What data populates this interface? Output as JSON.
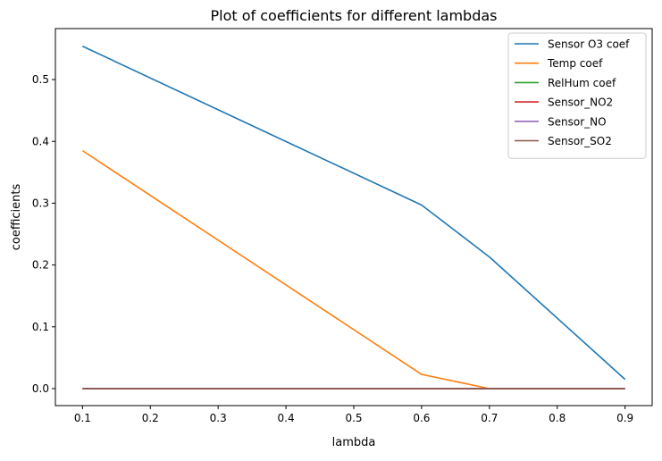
{
  "chart_data": {
    "type": "line",
    "title": "Plot of coefficients for different lambdas",
    "xlabel": "lambda",
    "ylabel": "coefficients",
    "x": [
      0.1,
      0.6,
      0.7,
      0.9
    ],
    "xlim": [
      0.06,
      0.94
    ],
    "ylim": [
      -0.0275,
      0.5825
    ],
    "xticks": [
      0.1,
      0.2,
      0.3,
      0.4,
      0.5,
      0.6,
      0.7,
      0.8,
      0.9
    ],
    "xtick_labels": [
      "0.1",
      "0.2",
      "0.3",
      "0.4",
      "0.5",
      "0.6",
      "0.7",
      "0.8",
      "0.9"
    ],
    "yticks": [
      0.0,
      0.1,
      0.2,
      0.3,
      0.4,
      0.5
    ],
    "ytick_labels": [
      "0.0",
      "0.1",
      "0.2",
      "0.3",
      "0.4",
      "0.5"
    ],
    "grid": false,
    "legend_position": "top-right",
    "series": [
      {
        "name": "Sensor O3 coef",
        "color": "#1f77b4",
        "values": [
          0.554,
          0.297,
          0.213,
          0.015
        ]
      },
      {
        "name": "Temp coef",
        "color": "#ff7f0e",
        "values": [
          0.385,
          0.023,
          0.0,
          0.0
        ]
      },
      {
        "name": "RelHum coef",
        "color": "#2ca02c",
        "values": [
          0.0,
          0.0,
          0.0,
          0.0
        ]
      },
      {
        "name": "Sensor_NO2",
        "color": "#d62728",
        "values": [
          0.0,
          0.0,
          0.0,
          0.0
        ]
      },
      {
        "name": "Sensor_NO",
        "color": "#9467bd",
        "values": [
          0.0,
          0.0,
          0.0,
          0.0
        ]
      },
      {
        "name": "Sensor_SO2",
        "color": "#8c564b",
        "values": [
          0.0,
          0.0,
          0.0,
          0.0
        ]
      }
    ]
  }
}
